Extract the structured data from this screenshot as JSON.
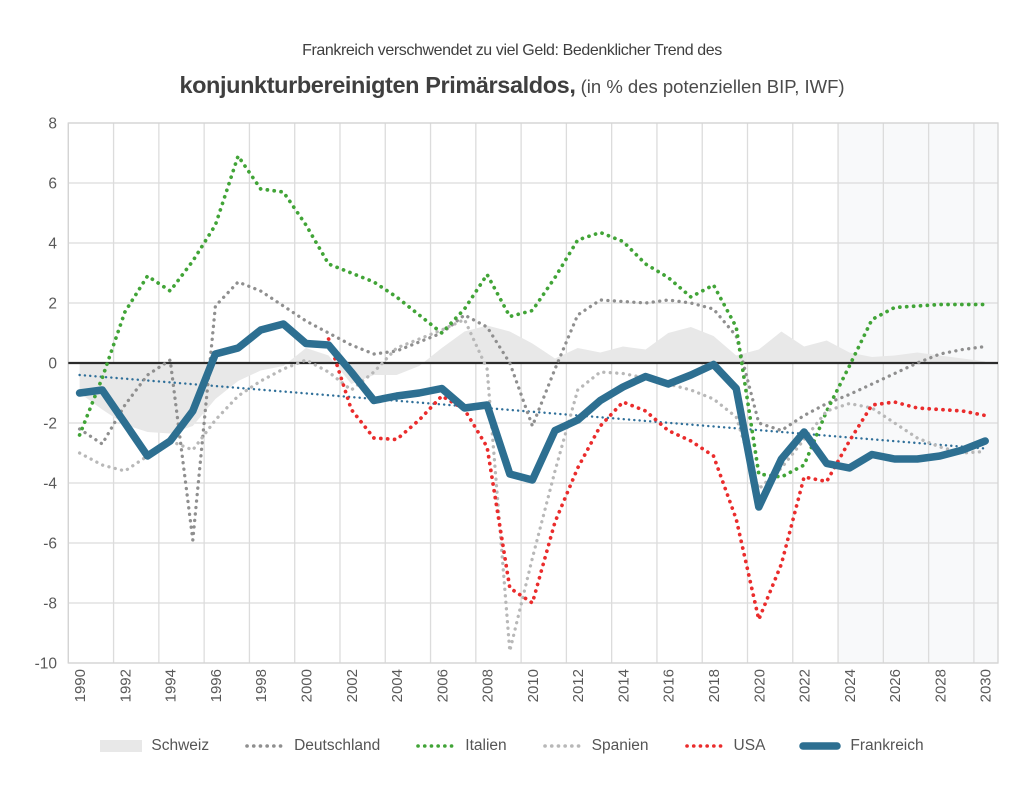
{
  "title": {
    "line1": "Frankreich verschwendet zu viel Geld: Bedenklicher Trend des",
    "line2_bold": "konjunkturbereinigten Primärsaldos,",
    "line2_normal": " (in % des potenziellen BIP, IWF)"
  },
  "colors": {
    "background": "#ffffff",
    "grid": "#dcdcdc",
    "plot_border": "#d4d4d4",
    "zero_line": "#2b2b2b",
    "axis_text": "#595959",
    "title_text": "#3f3f3f",
    "legend_text": "#555555",
    "forecast_band": "rgba(160,175,190,0.07)"
  },
  "chart_data": {
    "type": "line",
    "title": "Frankreich verschwendet zu viel Geld: Bedenklicher Trend des konjunkturbereinigten Primärsaldos",
    "subtitle": "(in % des potenziellen BIP, IWF)",
    "xlabel": "",
    "ylabel": "",
    "x": [
      1990,
      1991,
      1992,
      1993,
      1994,
      1995,
      1996,
      1997,
      1998,
      1999,
      2000,
      2001,
      2002,
      2003,
      2004,
      2005,
      2006,
      2007,
      2008,
      2009,
      2010,
      2011,
      2012,
      2013,
      2014,
      2015,
      2016,
      2017,
      2018,
      2019,
      2020,
      2021,
      2022,
      2023,
      2024,
      2025,
      2026,
      2027,
      2028,
      2029,
      2030
    ],
    "x_tick_labels": [
      "1990",
      "1992",
      "1994",
      "1996",
      "1998",
      "2000",
      "2002",
      "2004",
      "2006",
      "2008",
      "2010",
      "2012",
      "2014",
      "2016",
      "2018",
      "2020",
      "2022",
      "2024",
      "2026",
      "2028",
      "2030"
    ],
    "y_ticks": [
      8,
      6,
      4,
      2,
      0,
      -2,
      -4,
      -6,
      -8,
      -10
    ],
    "ylim": [
      -10,
      8
    ],
    "grid": true,
    "legend_position": "bottom",
    "forecast_band_start_year": 2024,
    "series": [
      {
        "name": "Schweiz",
        "style": "area",
        "color": "#e8e8e8",
        "values": [
          -1.0,
          -1.55,
          -2.05,
          -2.3,
          -2.35,
          -2.1,
          -1.2,
          -0.6,
          -0.25,
          -0.1,
          0.5,
          0.25,
          -0.7,
          -0.4,
          -0.4,
          -0.1,
          0.5,
          1.05,
          1.25,
          1.05,
          0.65,
          0.15,
          0.5,
          0.35,
          0.55,
          0.45,
          1.0,
          1.2,
          0.9,
          0.25,
          0.45,
          1.05,
          0.55,
          0.75,
          0.35,
          0.2,
          0.25,
          0.35,
          0.25,
          0.15,
          0.05
        ]
      },
      {
        "name": "Deutschland",
        "style": "dotted",
        "color": "#8f8f8f",
        "values": [
          -2.2,
          -2.7,
          -1.4,
          -0.4,
          0.1,
          -5.9,
          1.9,
          2.7,
          2.4,
          1.9,
          1.4,
          1.0,
          0.6,
          0.3,
          0.4,
          0.7,
          1.0,
          1.6,
          1.2,
          0.0,
          -2.1,
          -0.2,
          1.6,
          2.1,
          2.05,
          2.0,
          2.1,
          2.0,
          1.8,
          0.9,
          -2.0,
          -2.25,
          -1.75,
          -1.35,
          -1.05,
          -0.7,
          -0.35,
          0.0,
          0.3,
          0.45,
          0.55
        ]
      },
      {
        "name": "Italien",
        "style": "dotted",
        "color": "#41a437",
        "values": [
          -2.4,
          -0.5,
          1.7,
          2.9,
          2.4,
          3.4,
          4.6,
          6.9,
          5.8,
          5.7,
          4.6,
          3.3,
          3.0,
          2.7,
          2.2,
          1.6,
          1.0,
          1.8,
          2.95,
          1.55,
          1.75,
          2.85,
          4.1,
          4.35,
          4.05,
          3.3,
          2.85,
          2.2,
          2.6,
          1.2,
          -3.7,
          -3.8,
          -3.4,
          -1.6,
          -0.1,
          1.45,
          1.85,
          1.9,
          1.95,
          1.95,
          1.95
        ]
      },
      {
        "name": "Spanien",
        "style": "dotted",
        "color": "#b8b8b8",
        "values": [
          -3.0,
          -3.4,
          -3.6,
          -3.1,
          -2.6,
          -2.9,
          -1.9,
          -1.1,
          -0.6,
          -0.2,
          0.1,
          -0.3,
          -0.9,
          -0.3,
          0.5,
          0.8,
          1.1,
          1.45,
          -0.2,
          -9.6,
          -6.5,
          -3.6,
          -0.9,
          -0.3,
          -0.35,
          -0.5,
          -0.7,
          -0.9,
          -1.2,
          -1.8,
          -4.2,
          -3.5,
          -2.55,
          -1.6,
          -1.35,
          -1.5,
          -2.0,
          -2.5,
          -2.8,
          -3.0,
          -2.95
        ]
      },
      {
        "name": "USA",
        "style": "dotted",
        "color": "#ea2c2c",
        "values": [
          null,
          null,
          null,
          null,
          null,
          null,
          null,
          null,
          null,
          null,
          null,
          0.8,
          -1.55,
          -2.5,
          -2.55,
          -1.9,
          -1.1,
          -1.55,
          -2.8,
          -7.5,
          -8.0,
          -5.3,
          -3.5,
          -2.1,
          -1.3,
          -1.6,
          -2.25,
          -2.6,
          -3.1,
          -5.2,
          -8.55,
          -6.7,
          -3.8,
          -3.95,
          -2.6,
          -1.4,
          -1.3,
          -1.5,
          -1.55,
          -1.6,
          -1.75
        ]
      },
      {
        "name": "Frankreich",
        "style": "solid",
        "color": "#2d6f91",
        "values": [
          -1.0,
          -0.9,
          -2.0,
          -3.1,
          -2.6,
          -1.6,
          0.3,
          0.5,
          1.1,
          1.3,
          0.65,
          0.6,
          -0.3,
          -1.25,
          -1.1,
          -1.0,
          -0.85,
          -1.5,
          -1.4,
          -3.7,
          -3.9,
          -2.25,
          -1.9,
          -1.25,
          -0.8,
          -0.45,
          -0.7,
          -0.4,
          -0.05,
          -0.85,
          -4.8,
          -3.2,
          -2.3,
          -3.35,
          -3.5,
          -3.05,
          -3.2,
          -3.2,
          -3.1,
          -2.9,
          -2.6
        ]
      }
    ],
    "trend_line": {
      "name": "Frankreich Trend",
      "color": "#2f6f99",
      "style": "dotted-thin",
      "start": [
        1990,
        -0.4
      ],
      "end": [
        2030,
        -2.85
      ]
    }
  },
  "legend": {
    "items": [
      {
        "label": "Schweiz",
        "swatch": "area",
        "color": "#e8e8e8"
      },
      {
        "label": "Deutschland",
        "swatch": "dotted",
        "color": "#8f8f8f"
      },
      {
        "label": "Italien",
        "swatch": "dotted",
        "color": "#41a437"
      },
      {
        "label": "Spanien",
        "swatch": "dotted",
        "color": "#b8b8b8"
      },
      {
        "label": "USA",
        "swatch": "dotted",
        "color": "#ea2c2c"
      },
      {
        "label": "Frankreich",
        "swatch": "solid",
        "color": "#2d6f91"
      }
    ]
  }
}
